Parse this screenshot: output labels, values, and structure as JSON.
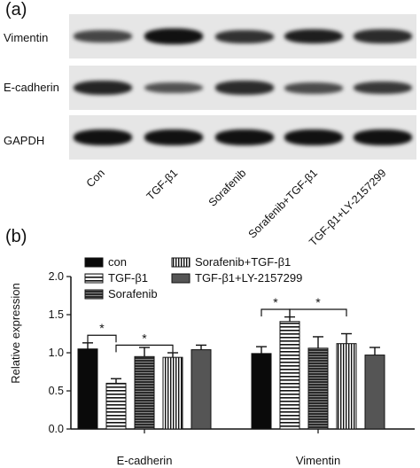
{
  "panel_a": {
    "letter": "(a)",
    "rows": [
      {
        "label": "Vimentin",
        "intensity": [
          0.55,
          0.95,
          0.7,
          0.85,
          0.75
        ]
      },
      {
        "label": "E-cadherin",
        "intensity": [
          0.8,
          0.45,
          0.75,
          0.5,
          0.65
        ]
      },
      {
        "label": "GAPDH",
        "intensity": [
          0.95,
          0.95,
          0.95,
          0.95,
          0.95
        ]
      }
    ],
    "lanes": [
      "Con",
      "TGF-β1",
      "Sorafenib",
      "Sorafenib+TGF-β1",
      "TGF-β1+LY-2157299"
    ]
  },
  "panel_b": {
    "letter": "(b)"
  },
  "chart_data": {
    "type": "bar",
    "categories": [
      "E-cadherin",
      "Vimentin"
    ],
    "ylabel": "Relative expression",
    "ylim": [
      0,
      2.0
    ],
    "yticks": [
      "0.0",
      "0.5",
      "1.0",
      "1.5",
      "2.0"
    ],
    "legend_placement": "top",
    "series": [
      {
        "name": "con",
        "values": [
          1.05,
          0.99
        ],
        "errors": [
          0.08,
          0.09
        ],
        "pattern": "solid-black"
      },
      {
        "name": "TGF-β1",
        "values": [
          0.6,
          1.41
        ],
        "errors": [
          0.06,
          0.06
        ],
        "pattern": "horizontal-lines"
      },
      {
        "name": "Sorafenib",
        "values": [
          0.95,
          1.06
        ],
        "errors": [
          0.12,
          0.15
        ],
        "pattern": "dense-horizontal"
      },
      {
        "name": "Sorafenib+TGF-β1",
        "values": [
          0.94,
          1.12
        ],
        "errors": [
          0.06,
          0.13
        ],
        "pattern": "vertical-lines"
      },
      {
        "name": "TGF-β1+LY-2157299",
        "values": [
          1.04,
          0.97
        ],
        "errors": [
          0.06,
          0.1
        ],
        "pattern": "dark-gray"
      }
    ],
    "annotations": [
      {
        "category": 0,
        "from": 0,
        "to": 1,
        "text": "*"
      },
      {
        "category": 0,
        "from": 1,
        "to": 3,
        "text": "*"
      },
      {
        "category": 1,
        "from": 0,
        "to": 1,
        "text": "*"
      },
      {
        "category": 1,
        "from": 1,
        "to": 3,
        "text": "*"
      }
    ]
  }
}
